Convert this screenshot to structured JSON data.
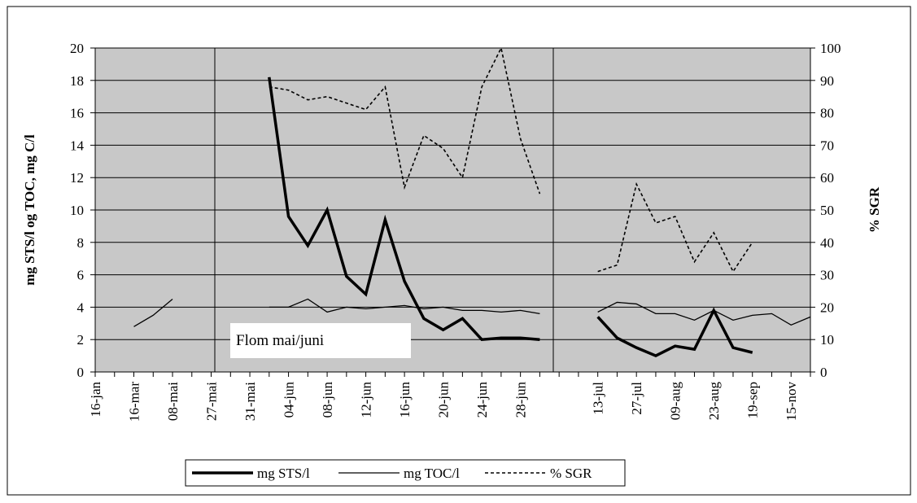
{
  "chart_data": {
    "type": "line",
    "y_label": "mg STS/l og TOC, mg C/l",
    "y2_label": "% SGR",
    "annotation": "Flom mai/juni",
    "categories": [
      "16-jan",
      null,
      "16-mar",
      null,
      "08-mai",
      null,
      "27-mai",
      null,
      "31-mai",
      null,
      "04-jun",
      null,
      "08-jun",
      null,
      "12-jun",
      null,
      "16-jun",
      null,
      "20-jun",
      null,
      "24-jun",
      null,
      "28-jun",
      null,
      null,
      null,
      "13-jul",
      null,
      "27-jul",
      null,
      "09-aug",
      null,
      "23-aug",
      null,
      "19-sep",
      null,
      "15-nov",
      null
    ],
    "series": [
      {
        "name": "mg STS/l",
        "color": "#000000",
        "style": "thick",
        "values": [
          null,
          null,
          null,
          null,
          null,
          null,
          null,
          null,
          null,
          18.2,
          9.6,
          7.8,
          10.0,
          5.9,
          4.8,
          9.4,
          5.6,
          3.3,
          2.6,
          3.3,
          2.0,
          2.1,
          2.1,
          2.0,
          null,
          null,
          3.4,
          2.1,
          1.5,
          1.0,
          1.6,
          1.4,
          3.8,
          1.5,
          1.2,
          null,
          null,
          null
        ]
      },
      {
        "name": "mg TOC/l",
        "color": "#000000",
        "style": "thin",
        "values": [
          null,
          null,
          2.8,
          3.5,
          4.5,
          null,
          null,
          null,
          null,
          4.0,
          4.0,
          4.5,
          3.7,
          4.0,
          3.9,
          4.0,
          4.1,
          3.9,
          4.0,
          3.8,
          3.8,
          3.7,
          3.8,
          3.6,
          null,
          null,
          3.7,
          4.3,
          4.2,
          3.6,
          3.6,
          3.2,
          3.8,
          3.2,
          3.5,
          3.6,
          2.9,
          3.4
        ]
      },
      {
        "name": "% SGR",
        "color": "#000000",
        "style": "dashed",
        "axis": "y2",
        "values": [
          null,
          null,
          null,
          null,
          null,
          null,
          null,
          null,
          null,
          88,
          87,
          84,
          85,
          83,
          81,
          88,
          57,
          73,
          69,
          60,
          88,
          100,
          72,
          55,
          null,
          null,
          31,
          33,
          58,
          46,
          48,
          34,
          43,
          31,
          40,
          null,
          null,
          null
        ]
      }
    ],
    "ylim": [
      0,
      20
    ],
    "yticks": [
      0,
      2,
      4,
      6,
      8,
      10,
      12,
      14,
      16,
      18,
      20
    ],
    "y2lim": [
      0,
      100
    ],
    "y2ticks": [
      0,
      10,
      20,
      30,
      40,
      50,
      60,
      70,
      80,
      90,
      100
    ],
    "grid": true,
    "plot_background": "#c8c8c8",
    "legend": "bottom"
  }
}
